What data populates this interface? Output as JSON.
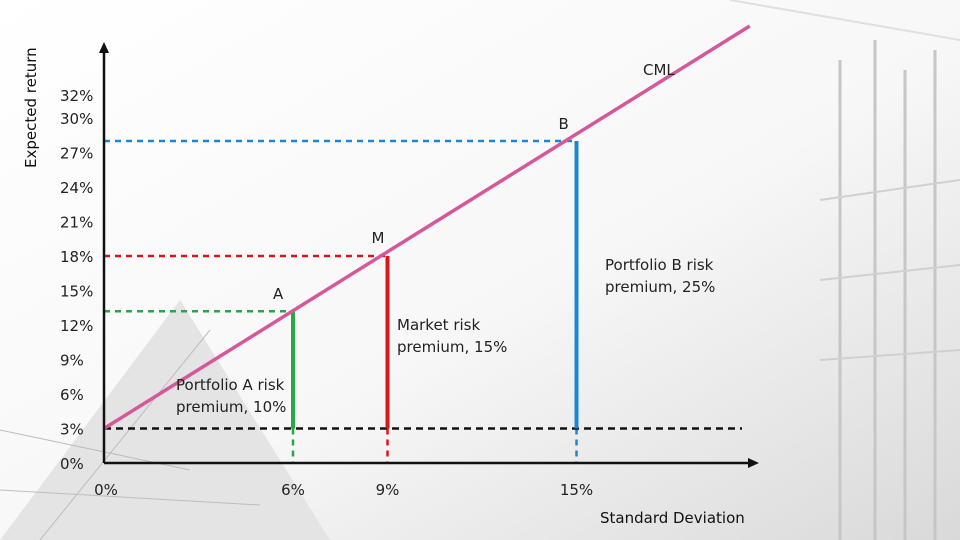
{
  "chart_data": {
    "type": "line",
    "xlabel": "Standard Deviation",
    "ylabel": "Expected return",
    "xlim": [
      0,
      24
    ],
    "ylim": [
      0,
      34
    ],
    "x_ticks": [
      {
        "value": 0,
        "label": "0%"
      },
      {
        "value": 6,
        "label": "6%"
      },
      {
        "value": 9,
        "label": "9%"
      },
      {
        "value": 15,
        "label": "15%"
      }
    ],
    "y_ticks": [
      {
        "value": 0,
        "label": "0%"
      },
      {
        "value": 3,
        "label": "3%"
      },
      {
        "value": 6,
        "label": "6%"
      },
      {
        "value": 9,
        "label": "9%"
      },
      {
        "value": 12,
        "label": "12%"
      },
      {
        "value": 15,
        "label": "15%"
      },
      {
        "value": 18,
        "label": "18%"
      },
      {
        "value": 21,
        "label": "21%"
      },
      {
        "value": 24,
        "label": "24%"
      },
      {
        "value": 27,
        "label": "27%"
      },
      {
        "value": 30,
        "label": "30%"
      },
      {
        "value": 32,
        "label": "32%"
      }
    ],
    "series": [
      {
        "name": "CML",
        "x": [
          0,
          20.5
        ],
        "y": [
          3,
          38
        ],
        "color": "#d6589a"
      }
    ],
    "points": [
      {
        "label": "A",
        "x": 6,
        "y": 13.2,
        "color": "#27a844"
      },
      {
        "label": "M",
        "x": 9,
        "y": 18,
        "color": "#d9161c"
      },
      {
        "label": "B",
        "x": 15,
        "y": 28,
        "color": "#1b87d4"
      }
    ],
    "risk_free": {
      "y": 3,
      "color": "#111111"
    },
    "annotations": [
      {
        "id": "portfolio-a-risk-premium",
        "lines": [
          "Portfolio A risk",
          "premium, 10%"
        ]
      },
      {
        "id": "market-risk-premium",
        "lines": [
          "Market risk",
          "premium, 15%"
        ]
      },
      {
        "id": "portfolio-b-risk-premium",
        "lines": [
          "Portfolio B risk",
          "premium, 25%"
        ]
      }
    ]
  }
}
